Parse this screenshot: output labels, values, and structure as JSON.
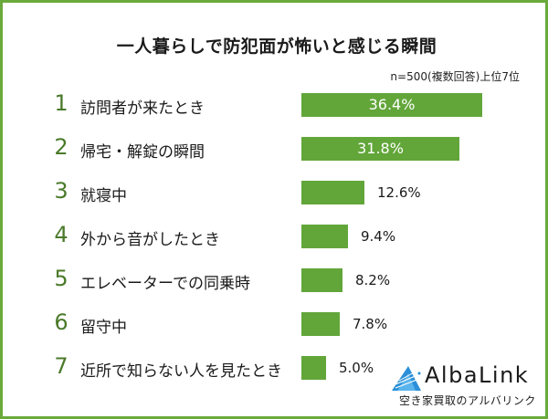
{
  "title": "一人暮らしで防犯面が怖いと感じる瞬間",
  "subtitle": "n=500(複数回答)上位7位",
  "brand": {
    "name": "AlbaLink",
    "tagline": "空き家買取のアルバリンク",
    "accent": "#2a8fd8"
  },
  "colors": {
    "bar": "#62a63a",
    "border": "#6aaa3c",
    "rank": "#4a7a2a"
  },
  "chart_data": {
    "type": "bar",
    "orientation": "horizontal",
    "title": "一人暮らしで防犯面が怖いと感じる瞬間",
    "subtitle": "n=500(複数回答)上位7位",
    "categories": [
      "訪問者が来たとき",
      "帰宅・解錠の瞬間",
      "就寝中",
      "外から音がしたとき",
      "エレベーターでの同乗時",
      "留守中",
      "近所で知らない人を見たとき"
    ],
    "ranks": [
      "1",
      "2",
      "3",
      "4",
      "5",
      "6",
      "7"
    ],
    "values": [
      36.4,
      31.8,
      12.6,
      9.4,
      8.2,
      7.8,
      5.0
    ],
    "labels": [
      "36.4%",
      "31.8%",
      "12.6%",
      "9.4%",
      "8.2%",
      "7.8%",
      "5.0%"
    ],
    "xlabel": "",
    "ylabel": "",
    "grid": false,
    "legend": false
  }
}
